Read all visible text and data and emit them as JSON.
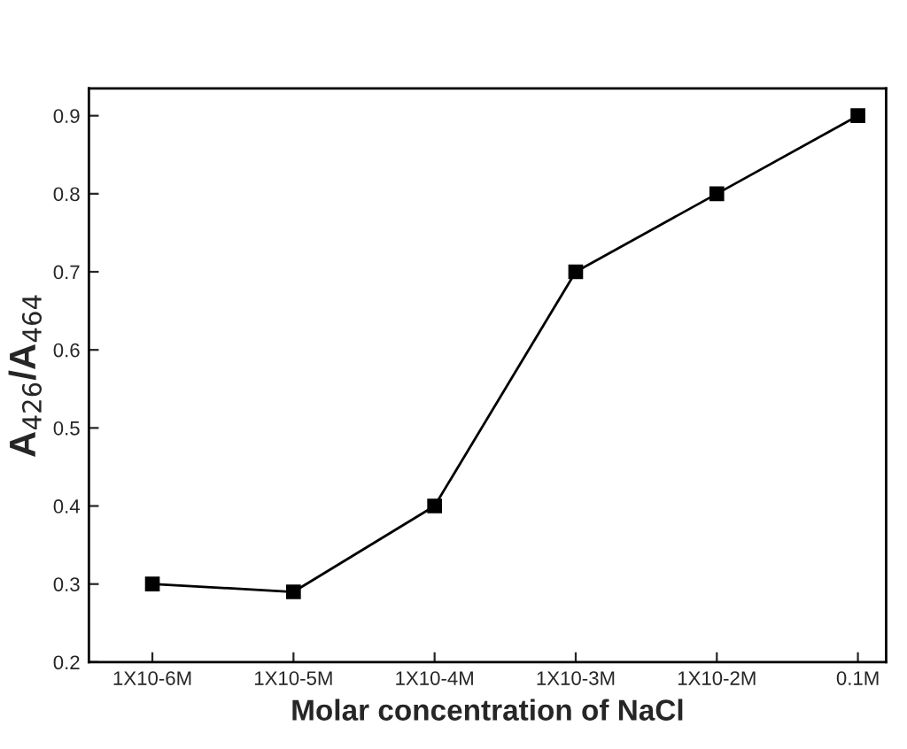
{
  "chart_data": {
    "type": "line",
    "xlabel": "Molar concentration of NaCl",
    "ylabel": "A$_{426}$/A$_{464}$",
    "categories": [
      "1X10-6M",
      "1X10-5M",
      "1X10-4M",
      "1X10-3M",
      "1X10-2M",
      "0.1M"
    ],
    "series": [
      {
        "color": "#000000",
        "values": [
          0.3,
          0.29,
          0.4,
          0.7,
          0.8,
          0.9
        ]
      }
    ],
    "ylim": [
      0.2,
      0.935
    ],
    "yticks": [
      0.2,
      0.3,
      0.4,
      0.5,
      0.6,
      0.7,
      0.8,
      0.9
    ],
    "marker": "square",
    "line_style": "solid",
    "grid": false,
    "legend": false
  }
}
